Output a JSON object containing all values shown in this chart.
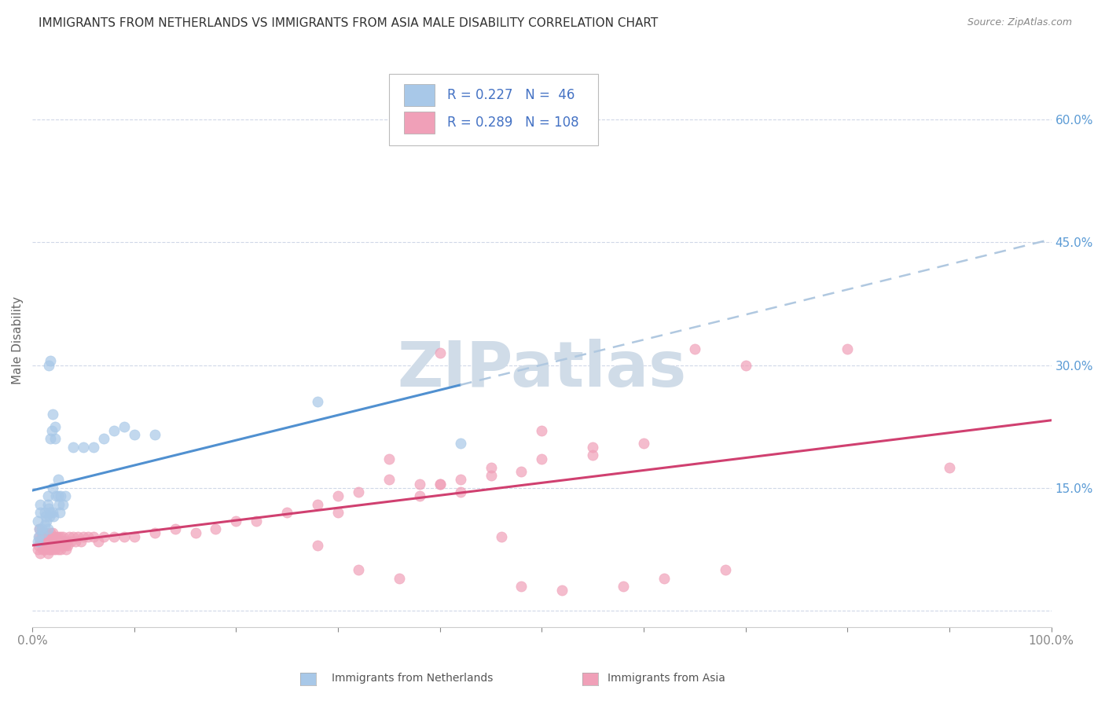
{
  "title": "IMMIGRANTS FROM NETHERLANDS VS IMMIGRANTS FROM ASIA MALE DISABILITY CORRELATION CHART",
  "source": "Source: ZipAtlas.com",
  "ylabel": "Male Disability",
  "right_yticks": [
    0.0,
    0.15,
    0.3,
    0.45,
    0.6
  ],
  "right_yticklabels": [
    "",
    "15.0%",
    "30.0%",
    "45.0%",
    "60.0%"
  ],
  "legend_r1": "R = 0.227",
  "legend_n1": "N =  46",
  "legend_r2": "R = 0.289",
  "legend_n2": "N = 108",
  "legend_label1": "Immigrants from Netherlands",
  "legend_label2": "Immigrants from Asia",
  "color_netherlands": "#a8c8e8",
  "color_asia": "#f0a0b8",
  "color_line_netherlands": "#5090d0",
  "color_line_asia": "#d04070",
  "color_line_dashed": "#b0c8e0",
  "watermark": "ZIPatlas",
  "netherlands_x": [
    0.005,
    0.008,
    0.008,
    0.01,
    0.012,
    0.012,
    0.013,
    0.015,
    0.015,
    0.015,
    0.016,
    0.017,
    0.018,
    0.018,
    0.019,
    0.02,
    0.02,
    0.021,
    0.022,
    0.022,
    0.023,
    0.025,
    0.025,
    0.026,
    0.027,
    0.028,
    0.03,
    0.032,
    0.005,
    0.006,
    0.007,
    0.009,
    0.014,
    0.016,
    0.018,
    0.02,
    0.04,
    0.05,
    0.06,
    0.07,
    0.08,
    0.09,
    0.1,
    0.12,
    0.28,
    0.42
  ],
  "netherlands_y": [
    0.11,
    0.12,
    0.13,
    0.095,
    0.105,
    0.12,
    0.115,
    0.1,
    0.14,
    0.13,
    0.125,
    0.115,
    0.12,
    0.21,
    0.22,
    0.12,
    0.24,
    0.115,
    0.21,
    0.225,
    0.14,
    0.14,
    0.16,
    0.13,
    0.12,
    0.14,
    0.13,
    0.14,
    0.085,
    0.09,
    0.1,
    0.1,
    0.11,
    0.3,
    0.305,
    0.15,
    0.2,
    0.2,
    0.2,
    0.21,
    0.22,
    0.225,
    0.215,
    0.215,
    0.255,
    0.205
  ],
  "asia_x": [
    0.005,
    0.006,
    0.007,
    0.007,
    0.008,
    0.008,
    0.009,
    0.01,
    0.01,
    0.01,
    0.011,
    0.012,
    0.012,
    0.013,
    0.013,
    0.014,
    0.014,
    0.015,
    0.015,
    0.015,
    0.016,
    0.016,
    0.017,
    0.017,
    0.018,
    0.018,
    0.018,
    0.019,
    0.019,
    0.02,
    0.02,
    0.02,
    0.021,
    0.021,
    0.022,
    0.022,
    0.023,
    0.023,
    0.024,
    0.025,
    0.025,
    0.026,
    0.027,
    0.028,
    0.028,
    0.029,
    0.03,
    0.03,
    0.031,
    0.032,
    0.033,
    0.034,
    0.035,
    0.036,
    0.038,
    0.04,
    0.042,
    0.045,
    0.048,
    0.05,
    0.055,
    0.06,
    0.065,
    0.07,
    0.08,
    0.09,
    0.1,
    0.12,
    0.14,
    0.16,
    0.18,
    0.2,
    0.22,
    0.25,
    0.28,
    0.3,
    0.32,
    0.35,
    0.38,
    0.4,
    0.42,
    0.45,
    0.48,
    0.5,
    0.55,
    0.6,
    0.65,
    0.7,
    0.8,
    0.9,
    0.4,
    0.5,
    0.55,
    0.35,
    0.45,
    0.4,
    0.42,
    0.38,
    0.3,
    0.28,
    0.46,
    0.32,
    0.36,
    0.48,
    0.52,
    0.58,
    0.62,
    0.68
  ],
  "asia_y": [
    0.075,
    0.08,
    0.09,
    0.1,
    0.07,
    0.085,
    0.09,
    0.075,
    0.085,
    0.095,
    0.08,
    0.075,
    0.09,
    0.085,
    0.095,
    0.08,
    0.09,
    0.07,
    0.08,
    0.09,
    0.075,
    0.085,
    0.08,
    0.09,
    0.075,
    0.085,
    0.095,
    0.08,
    0.09,
    0.075,
    0.085,
    0.095,
    0.08,
    0.09,
    0.075,
    0.085,
    0.08,
    0.09,
    0.085,
    0.075,
    0.09,
    0.085,
    0.08,
    0.075,
    0.09,
    0.085,
    0.08,
    0.09,
    0.085,
    0.08,
    0.075,
    0.085,
    0.08,
    0.09,
    0.085,
    0.09,
    0.085,
    0.09,
    0.085,
    0.09,
    0.09,
    0.09,
    0.085,
    0.09,
    0.09,
    0.09,
    0.09,
    0.095,
    0.1,
    0.095,
    0.1,
    0.11,
    0.11,
    0.12,
    0.13,
    0.14,
    0.145,
    0.16,
    0.155,
    0.155,
    0.16,
    0.165,
    0.17,
    0.185,
    0.19,
    0.205,
    0.32,
    0.3,
    0.32,
    0.175,
    0.315,
    0.22,
    0.2,
    0.185,
    0.175,
    0.155,
    0.145,
    0.14,
    0.12,
    0.08,
    0.09,
    0.05,
    0.04,
    0.03,
    0.025,
    0.03,
    0.04,
    0.05
  ],
  "xlim": [
    0.0,
    1.0
  ],
  "ylim": [
    -0.02,
    0.68
  ],
  "background_color": "#ffffff",
  "grid_color": "#d0d8e8",
  "title_fontsize": 11,
  "watermark_color": "#d0dce8"
}
